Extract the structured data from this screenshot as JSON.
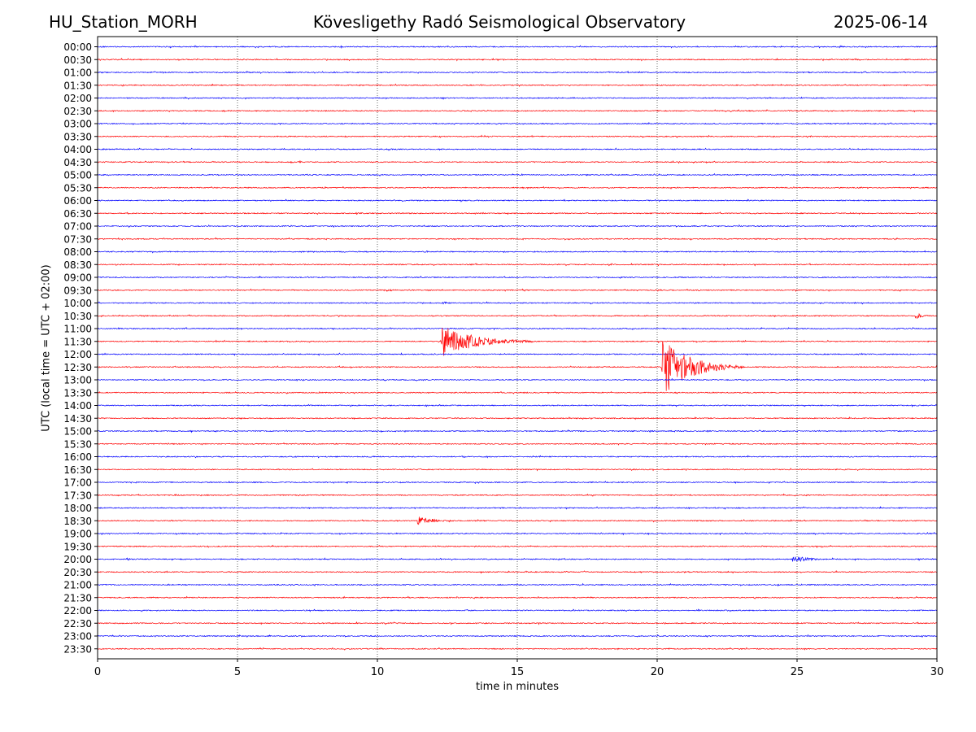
{
  "header": {
    "station": "HU_Station_MORH",
    "observatory": "Kövesligethy Radó Seismological Observatory",
    "date": "2025-06-14"
  },
  "chart_data": {
    "type": "line",
    "title": "Kövesligethy Radó Seismological Observatory",
    "xlabel": "time in minutes",
    "ylabel": "UTC (local time = UTC + 02:00)",
    "xlim": [
      0,
      30
    ],
    "x_ticks": [
      "0",
      "5",
      "10",
      "15",
      "20",
      "25",
      "30"
    ],
    "x_grid": "vertical dotted lines at each x tick",
    "rows": [
      "00:00",
      "00:30",
      "01:00",
      "01:30",
      "02:00",
      "02:30",
      "03:00",
      "03:30",
      "04:00",
      "04:30",
      "05:00",
      "05:30",
      "06:00",
      "06:30",
      "07:00",
      "07:30",
      "08:00",
      "08:30",
      "09:00",
      "09:30",
      "10:00",
      "10:30",
      "11:00",
      "11:30",
      "12:00",
      "12:30",
      "13:00",
      "13:30",
      "14:00",
      "14:30",
      "15:00",
      "15:30",
      "16:00",
      "16:30",
      "17:00",
      "17:30",
      "18:00",
      "18:30",
      "19:00",
      "19:30",
      "20:00",
      "20:30",
      "21:00",
      "21:30",
      "22:00",
      "22:30",
      "23:00",
      "23:30"
    ],
    "colors": {
      "full_hour": "#0000ff",
      "half_hour": "#ff0000"
    },
    "events": [
      {
        "row": "06:30",
        "start": 9.2,
        "duration": 1.5,
        "amp": 1.5
      },
      {
        "row": "09:30",
        "start": 10.2,
        "duration": 1.8,
        "amp": 1.8
      },
      {
        "row": "10:00",
        "start": 12.3,
        "duration": 1.0,
        "amp": 2.0
      },
      {
        "row": "10:30",
        "start": 29.2,
        "duration": 0.8,
        "amp": 5
      },
      {
        "row": "11:30",
        "start": 12.25,
        "duration": 3.5,
        "amp": 22
      },
      {
        "row": "12:30",
        "start": 20.15,
        "duration": 3.0,
        "amp": 38
      },
      {
        "row": "18:30",
        "start": 11.4,
        "duration": 1.8,
        "amp": 6
      },
      {
        "row": "20:00",
        "start": 1.0,
        "duration": 0.5,
        "amp": 3
      },
      {
        "row": "20:00",
        "start": 24.8,
        "duration": 1.8,
        "amp": 5
      }
    ]
  }
}
